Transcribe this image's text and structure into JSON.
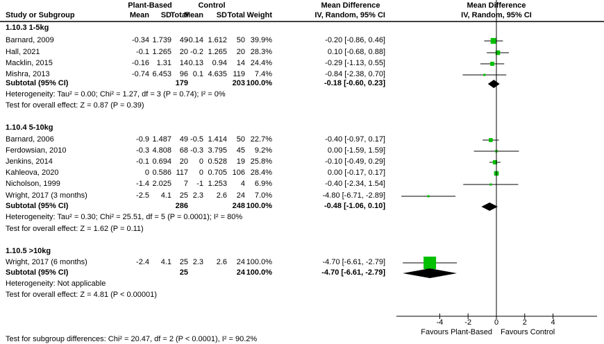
{
  "header": {
    "group1": "Plant-Based",
    "group2": "Control",
    "md_title": "Mean Difference",
    "plot_title": "Mean Difference",
    "columns": [
      "Study or Subgroup",
      "Mean",
      "SD",
      "Total",
      "Mean",
      "SD",
      "Total",
      "Weight",
      "IV, Random, 95% CI"
    ],
    "plot_method": "IV, Random, 95% CI"
  },
  "chart_data": {
    "type": "forest",
    "xlim": [
      -7,
      7
    ],
    "xticks": [
      "-4",
      "-2",
      "0",
      "2",
      "4"
    ],
    "xtick_values": [
      -4,
      -2,
      0,
      2,
      4
    ],
    "left_label": "Favours Plant-Based",
    "right_label": "Favours Control",
    "marker_color": "#00c000",
    "subgroups": [
      {
        "title": "1.10.3 1-5kg",
        "studies": [
          {
            "name": "Barnard, 2009",
            "m1": "-0.34",
            "sd1": "1.739",
            "n1": "49",
            "m2": "-0.14",
            "sd2": "1.612",
            "n2": "50",
            "weight": "39.9%",
            "ci": "-0.20 [-0.86, 0.46]",
            "md": -0.2,
            "lo": -0.86,
            "hi": 0.46,
            "w": 39.9
          },
          {
            "name": "Hall, 2021",
            "m1": "-0.1",
            "sd1": "1.265",
            "n1": "20",
            "m2": "-0.2",
            "sd2": "1.265",
            "n2": "20",
            "weight": "28.3%",
            "ci": "0.10 [-0.68, 0.88]",
            "md": 0.1,
            "lo": -0.68,
            "hi": 0.88,
            "w": 28.3
          },
          {
            "name": "Macklin, 2015",
            "m1": "-0.16",
            "sd1": "1.31",
            "n1": "14",
            "m2": "0.13",
            "sd2": "0.94",
            "n2": "14",
            "weight": "24.4%",
            "ci": "-0.29 [-1.13, 0.55]",
            "md": -0.29,
            "lo": -1.13,
            "hi": 0.55,
            "w": 24.4
          },
          {
            "name": "Mishra, 2013",
            "m1": "-0.74",
            "sd1": "6.453",
            "n1": "96",
            "m2": "0.1",
            "sd2": "4.635",
            "n2": "119",
            "weight": "7.4%",
            "ci": "-0.84 [-2.38, 0.70]",
            "md": -0.84,
            "lo": -2.38,
            "hi": 0.7,
            "w": 7.4
          }
        ],
        "subtotal": {
          "label": "Subtotal (95% CI)",
          "n1": "179",
          "n2": "203",
          "weight": "100.0%",
          "ci": "-0.18 [-0.60, 0.23]",
          "md": -0.18,
          "lo": -0.6,
          "hi": 0.23
        },
        "heterogeneity": "Heterogeneity: Tau² = 0.00; Chi² = 1.27, df = 3 (P = 0.74); I² = 0%",
        "overall": "Test for overall effect: Z = 0.87 (P = 0.39)"
      },
      {
        "title": "1.10.4 5-10kg",
        "studies": [
          {
            "name": "Barnard, 2006",
            "m1": "-0.9",
            "sd1": "1.487",
            "n1": "49",
            "m2": "-0.5",
            "sd2": "1.414",
            "n2": "50",
            "weight": "22.7%",
            "ci": "-0.40 [-0.97, 0.17]",
            "md": -0.4,
            "lo": -0.97,
            "hi": 0.17,
            "w": 22.7
          },
          {
            "name": "Ferdowsian, 2010",
            "m1": "-0.3",
            "sd1": "4.808",
            "n1": "68",
            "m2": "-0.3",
            "sd2": "3.795",
            "n2": "45",
            "weight": "9.2%",
            "ci": "0.00 [-1.59, 1.59]",
            "md": 0.0,
            "lo": -1.59,
            "hi": 1.59,
            "w": 9.2
          },
          {
            "name": "Jenkins, 2014",
            "m1": "-0.1",
            "sd1": "0.694",
            "n1": "20",
            "m2": "0",
            "sd2": "0.528",
            "n2": "19",
            "weight": "25.8%",
            "ci": "-0.10 [-0.49, 0.29]",
            "md": -0.1,
            "lo": -0.49,
            "hi": 0.29,
            "w": 25.8
          },
          {
            "name": "Kahleova, 2020",
            "m1": "0",
            "sd1": "0.586",
            "n1": "117",
            "m2": "0",
            "sd2": "0.705",
            "n2": "106",
            "weight": "28.4%",
            "ci": "0.00 [-0.17, 0.17]",
            "md": 0.0,
            "lo": -0.17,
            "hi": 0.17,
            "w": 28.4
          },
          {
            "name": "Nicholson, 1999",
            "m1": "-1.4",
            "sd1": "2.025",
            "n1": "7",
            "m2": "-1",
            "sd2": "1.253",
            "n2": "4",
            "weight": "6.9%",
            "ci": "-0.40 [-2.34, 1.54]",
            "md": -0.4,
            "lo": -2.34,
            "hi": 1.54,
            "w": 6.9
          },
          {
            "name": "Wright, 2017 (3 months)",
            "m1": "-2.5",
            "sd1": "4.1",
            "n1": "25",
            "m2": "2.3",
            "sd2": "2.6",
            "n2": "24",
            "weight": "7.0%",
            "ci": "-4.80 [-6.71, -2.89]",
            "md": -4.8,
            "lo": -6.71,
            "hi": -2.89,
            "w": 7.0
          }
        ],
        "subtotal": {
          "label": "Subtotal (95% CI)",
          "n1": "286",
          "n2": "248",
          "weight": "100.0%",
          "ci": "-0.48 [-1.06, 0.10]",
          "md": -0.48,
          "lo": -1.06,
          "hi": 0.1
        },
        "heterogeneity": "Heterogeneity: Tau² = 0.30; Chi² = 25.51, df = 5 (P = 0.0001); I² = 80%",
        "overall": "Test for overall effect: Z = 1.62 (P = 0.11)"
      },
      {
        "title": "1.10.5 >10kg",
        "studies": [
          {
            "name": "Wright, 2017 (6 months)",
            "m1": "-2.4",
            "sd1": "4.1",
            "n1": "25",
            "m2": "2.3",
            "sd2": "2.6",
            "n2": "24",
            "weight": "100.0%",
            "ci": "-4.70 [-6.61, -2.79]",
            "md": -4.7,
            "lo": -6.61,
            "hi": -2.79,
            "w": 100.0
          }
        ],
        "subtotal": {
          "label": "Subtotal (95% CI)",
          "n1": "25",
          "n2": "24",
          "weight": "100.0%",
          "ci": "-4.70 [-6.61, -2.79]",
          "md": -4.7,
          "lo": -6.61,
          "hi": -2.79
        },
        "heterogeneity": "Heterogeneity: Not applicable",
        "overall": "Test for overall effect: Z = 4.81 (P < 0.00001)"
      }
    ],
    "subgroup_differences": "Test for subgroup differences: Chi² = 20.47, df = 2 (P < 0.0001), I² = 90.2%"
  }
}
